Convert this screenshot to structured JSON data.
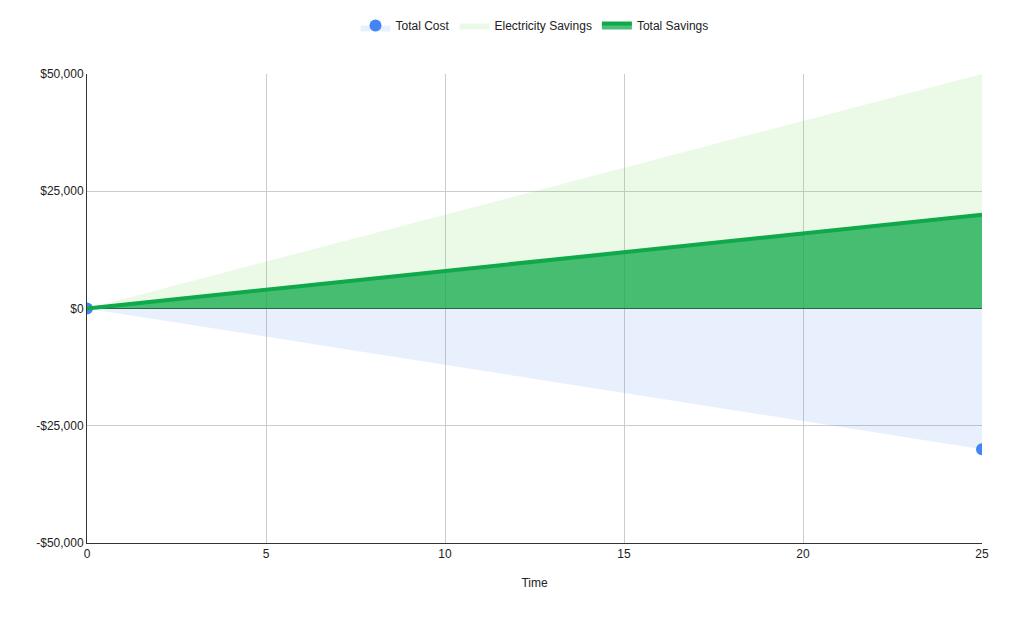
{
  "chart_data": {
    "type": "area",
    "x_label": "Time",
    "x": [
      0,
      25
    ],
    "series": [
      {
        "name": "Total Cost",
        "color": "#4285f4",
        "values": [
          0,
          -30000
        ],
        "marker": "circle",
        "line_style": "none"
      },
      {
        "name": "Electricity Savings",
        "color": "#5ad03c",
        "values": [
          0,
          50000
        ],
        "line_style": "none"
      },
      {
        "name": "Total Savings",
        "color": "#0fa84a",
        "values": [
          0,
          20000
        ],
        "line_style": "solid"
      }
    ],
    "xlim": [
      0,
      25
    ],
    "xticks": [
      0,
      5,
      10,
      15,
      20,
      25
    ],
    "ylim": [
      -50000,
      50000
    ],
    "yticks": [
      {
        "value": -50000,
        "label": "-$50,000"
      },
      {
        "value": -25000,
        "label": "-$25,000"
      },
      {
        "value": 0,
        "label": "$0"
      },
      {
        "value": 25000,
        "label": "$25,000"
      },
      {
        "value": 50000,
        "label": "$50,000"
      }
    ],
    "grid": true,
    "legend": "top"
  }
}
